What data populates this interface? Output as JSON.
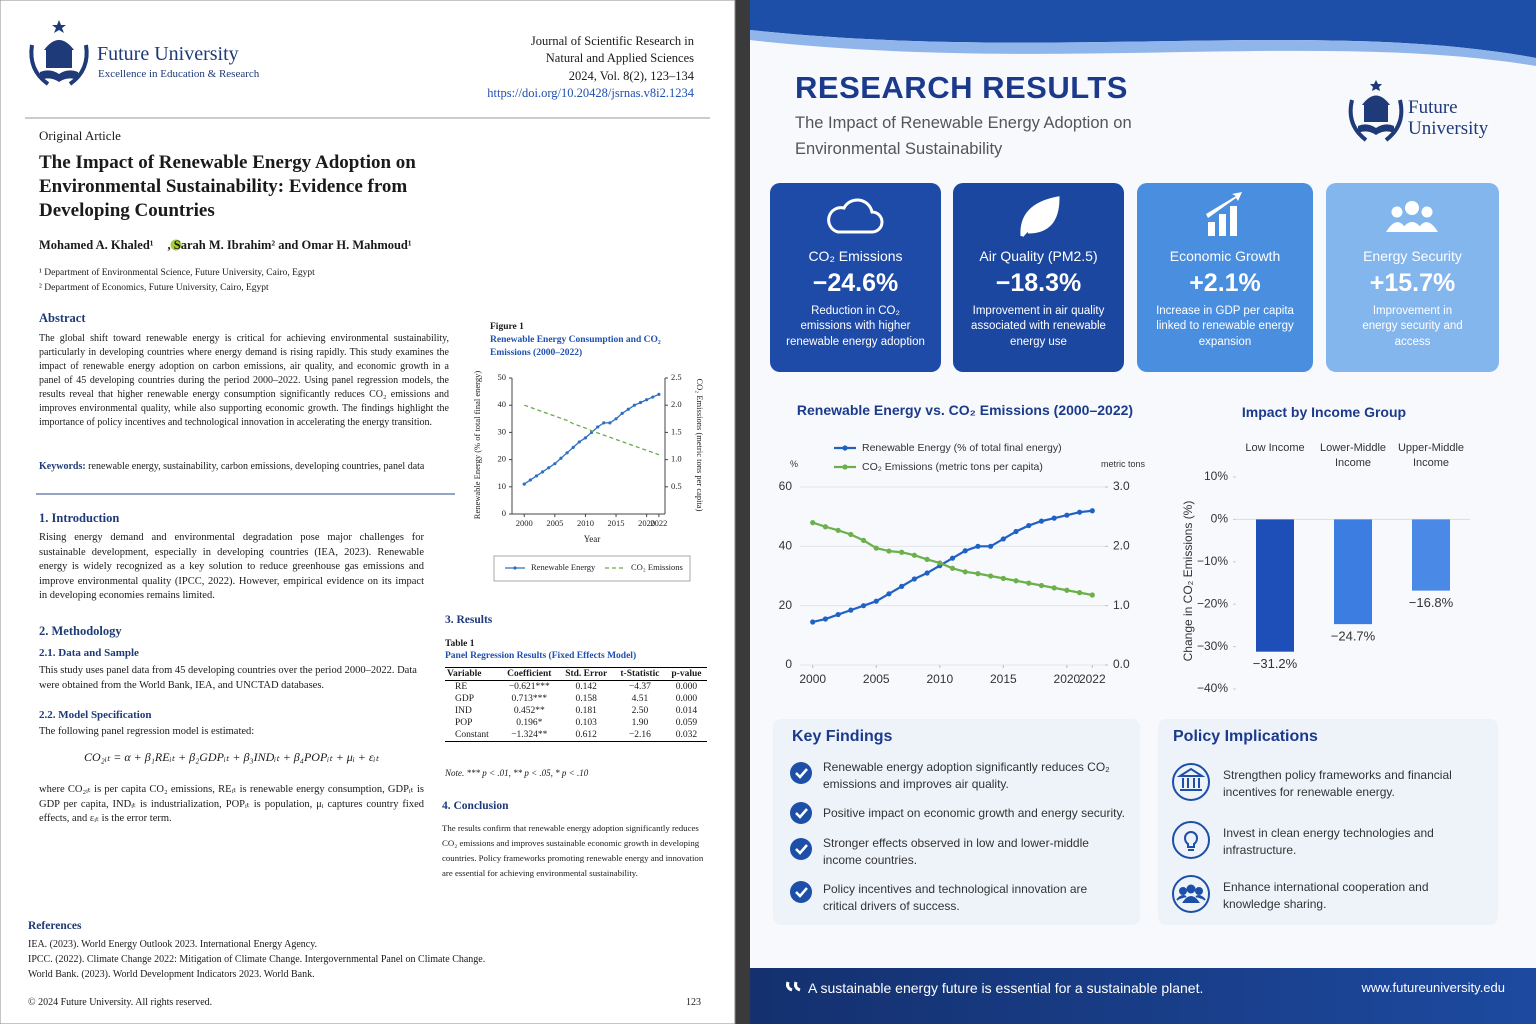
{
  "paper": {
    "logo": {
      "name": "Future University",
      "tagline": "Excellence in Education & Research"
    },
    "journal": [
      "Journal of Scientific Research in",
      "Natural and Applied Sciences",
      "2024, Vol. 8(2), 123–134",
      "https://doi.org/10.20428/jsrnas.v8i2.1234"
    ],
    "article_type": "Original Article",
    "title": "The Impact of Renewable Energy Adoption on Environmental Sustainability: Evidence from Developing Countries",
    "authors": [
      "Mohamed A. Khaled¹",
      ", Sarah M. Ibrahim² and Omar H. Mahmoud¹"
    ],
    "affiliations": [
      "¹ Department of Environmental Science, Future University, Cairo, Egypt",
      "² Department of Economics, Future University, Cairo, Egypt"
    ],
    "abstract": {
      "heading": "Abstract",
      "text": "The global shift toward renewable energy is critical for achieving environmental sustainability, particularly in developing countries where energy demand is rising rapidly. This study examines the impact of renewable energy adoption on carbon emissions, air quality, and economic growth in a panel of 45 developing countries during the period 2000–2022. Using panel regression models, the results reveal that higher renewable energy consumption significantly reduces CO₂ emissions and improves environmental quality, while also supporting economic growth. The findings highlight the importance of policy incentives and technological innovation in accelerating the energy transition."
    },
    "keywords": {
      "label": "Keywords:",
      "text": "renewable energy, sustainability, carbon emissions, developing countries, panel data"
    },
    "introduction": {
      "heading": "1. Introduction",
      "text": "Rising energy demand and environmental degradation pose major challenges for sustainable development, especially in developing countries (IEA, 2023). Renewable energy is widely recognized as a key solution to reduce greenhouse gas emissions and improve environmental quality (IPCC, 2022). However, empirical evidence on its impact in developing economies remains limited."
    },
    "methodology": {
      "heading": "2. Methodology",
      "data_heading": "2.1. Data and Sample",
      "data_text": "This study uses panel data from 45 developing countries over the period 2000–2022. Data were obtained from the World Bank, IEA, and UNCTAD databases.",
      "model_heading": "2.2. Model Specification",
      "model_text": "The following panel regression model is estimated:",
      "equation": "CO₂ᵢₜ = α + β₁REᵢₜ + β₂GDPᵢₜ + β₃INDᵢₜ + β₄POPᵢₜ + μᵢ + εᵢₜ",
      "where_text": "where CO₂ᵢₜ is per capita CO₂ emissions, REᵢₜ is renewable energy consumption, GDPᵢₜ is GDP per capita, INDᵢₜ is industrialization, POPᵢₜ is population, μᵢ captures country fixed effects, and εᵢₜ is the error term."
    },
    "results": {
      "heading": "3. Results",
      "table": {
        "label": "Table 1",
        "caption": "Panel Regression Results (Fixed Effects Model)",
        "columns": [
          "Variable",
          "Coefficient",
          "Std. Error",
          "t-Statistic",
          "p-value"
        ],
        "rows": [
          [
            "RE",
            "−0.621***",
            "0.142",
            "−4.37",
            "0.000"
          ],
          [
            "GDP",
            "0.713***",
            "0.158",
            "4.51",
            "0.000"
          ],
          [
            "IND",
            "0.452**",
            "0.181",
            "2.50",
            "0.014"
          ],
          [
            "POP",
            "0.196*",
            "0.103",
            "1.90",
            "0.059"
          ],
          [
            "Constant",
            "−1.324**",
            "0.612",
            "−2.16",
            "0.032"
          ]
        ],
        "note": "Note. *** p < .01, ** p < .05, * p < .10"
      }
    },
    "conclusion": {
      "heading": "4. Conclusion",
      "text": "The results confirm that renewable energy adoption significantly reduces CO₂ emissions and improves sustainable economic growth in developing countries. Policy frameworks promoting renewable energy and innovation are essential for achieving environmental sustainability."
    },
    "references": {
      "heading": "References",
      "items": [
        "IEA. (2023). World Energy Outlook 2023. International Energy Agency.",
        "IPCC. (2022). Climate Change 2022: Mitigation of Climate Change. Intergovernmental Panel on Climate Change.",
        "World Bank. (2023). World Development Indicators 2023. World Bank."
      ]
    },
    "footer": {
      "copyright": "© 2024 Future University. All rights reserved.",
      "page": "123"
    }
  },
  "poster": {
    "title": "RESEARCH RESULTS",
    "subtitle": "The Impact of Renewable Energy Adoption on Environmental Sustainability",
    "logo": "Future University",
    "cards": [
      {
        "title": "CO₂ Emissions",
        "value": "−24.6%",
        "text": "Reduction in CO₂ emissions with higher renewable energy adoption"
      },
      {
        "title": "Air Quality (PM2.5)",
        "value": "−18.3%",
        "text": "Improvement in air quality associated with renewable energy use"
      },
      {
        "title": "Economic Growth",
        "value": "+2.1%",
        "text": "Increase in GDP per capita linked to renewable energy expansion"
      },
      {
        "title": "Energy Security",
        "value": "+15.7%",
        "text": "Improvement in energy security and access"
      }
    ],
    "key_findings": {
      "heading": "Key Findings",
      "items": [
        "Renewable energy adoption significantly reduces CO₂ emissions and improves air quality.",
        "Positive impact on economic growth and energy security.",
        "Stronger effects observed in low and lower-middle income countries.",
        "Policy incentives and technological innovation are critical drivers of success."
      ]
    },
    "policy": {
      "heading": "Policy Implications",
      "items": [
        "Strengthen policy frameworks and financial incentives for renewable energy.",
        "Invest in clean energy technologies and infrastructure.",
        "Enhance international cooperation and knowledge sharing."
      ]
    },
    "footer": {
      "quote": "A sustainable energy future is essential for a sustainable planet.",
      "url": "www.futureuniversity.edu"
    }
  },
  "chart_data": [
    {
      "type": "line",
      "label": "Figure 1",
      "title": "Renewable Energy Consumption and CO₂ Emissions (2000–2022)",
      "xlabel": "Year",
      "ylabel": "Renewable Energy (% of total final energy)",
      "y2label": "CO₂ Emissions (metric tons per capita)",
      "x": [
        2000,
        2001,
        2002,
        2003,
        2004,
        2005,
        2006,
        2007,
        2008,
        2009,
        2010,
        2011,
        2012,
        2013,
        2014,
        2015,
        2016,
        2017,
        2018,
        2019,
        2020,
        2021,
        2022
      ],
      "xlim": [
        1998,
        2023
      ],
      "xticks": [
        2000,
        2005,
        2010,
        2015,
        2020,
        2022
      ],
      "ylim": [
        0,
        50
      ],
      "yticks": [
        0,
        10,
        20,
        30,
        40,
        50
      ],
      "y2lim": [
        0,
        2.5
      ],
      "y2ticks": [
        0.5,
        {
          "value": 1,
          "label": "1.0"
        },
        1.5,
        {
          "value": 2,
          "label": "2.0"
        },
        2.5
      ],
      "grid": false,
      "legend": "bottom",
      "series": [
        {
          "name": "Renewable Energy",
          "color": "#2e6fc0",
          "line_style": "solid",
          "values": [
            11,
            12.5,
            14,
            15.5,
            17,
            18.5,
            20.5,
            22.5,
            24.5,
            26.5,
            28,
            30,
            32,
            33.5,
            33.5,
            35,
            37,
            38.5,
            40,
            41,
            42,
            43,
            44
          ]
        },
        {
          "name": "CO₂ Emissions",
          "color": "#6aaa4a",
          "line_style": "dashed",
          "axis": "y2",
          "values": [
            2.0,
            1.96,
            1.92,
            1.88,
            1.84,
            1.8,
            1.76,
            1.72,
            1.66,
            1.62,
            1.58,
            1.53,
            1.49,
            1.45,
            1.41,
            1.37,
            1.33,
            1.29,
            1.25,
            1.21,
            1.17,
            1.13,
            1.09
          ]
        }
      ]
    },
    {
      "type": "line",
      "title": "Renewable Energy vs. CO₂ Emissions (2000–2022)",
      "ylabel": "%",
      "y2label": "metric tons",
      "x": [
        2000,
        2001,
        2002,
        2003,
        2004,
        2005,
        2006,
        2007,
        2008,
        2009,
        2010,
        2011,
        2012,
        2013,
        2014,
        2015,
        2016,
        2017,
        2018,
        2019,
        2020,
        2021,
        2022
      ],
      "xlim": [
        1999,
        2023
      ],
      "xticks": [
        2000,
        2005,
        2010,
        2015,
        2020,
        2022
      ],
      "ylim": [
        0,
        60
      ],
      "yticks": [
        0,
        20,
        40,
        60
      ],
      "y2lim": [
        0,
        3
      ],
      "y2ticks": [
        {
          "value": 0,
          "label": "0.0"
        },
        {
          "value": 1,
          "label": "1.0"
        },
        {
          "value": 2,
          "label": "2.0"
        },
        {
          "value": 3,
          "label": "3.0"
        }
      ],
      "grid": true,
      "legend": "top",
      "series": [
        {
          "name": "Renewable Energy (% of total final energy)",
          "color": "#1f62c4",
          "line_style": "solid",
          "values": [
            14.5,
            15.5,
            17,
            18.5,
            20,
            21.5,
            24,
            26.5,
            29,
            31,
            33.5,
            36,
            38.5,
            40,
            40,
            42.5,
            45,
            47,
            48.5,
            49.5,
            50.5,
            51.5,
            52
          ]
        },
        {
          "name": "CO₂ Emissions (metric tons per capita)",
          "color": "#6bb04a",
          "line_style": "solid",
          "axis": "y2",
          "values": [
            2.4,
            2.33,
            2.27,
            2.2,
            2.1,
            1.97,
            1.92,
            1.9,
            1.85,
            1.78,
            1.72,
            1.63,
            1.57,
            1.54,
            1.5,
            1.46,
            1.42,
            1.38,
            1.34,
            1.3,
            1.26,
            1.22,
            1.18
          ]
        }
      ]
    },
    {
      "type": "bar",
      "title": "Impact by Income Group",
      "ylabel": "Change in CO₂ Emissions (%)",
      "categories": [
        "Low Income",
        "Lower-Middle Income",
        "Upper-Middle Income"
      ],
      "values": [
        -31.2,
        -24.7,
        -16.8
      ],
      "value_labels": [
        "−31.2%",
        "−24.7%",
        "−16.8%"
      ],
      "colors": [
        "#1e4fb8",
        "#3b7de0",
        "#4a8ae6"
      ],
      "ylim": [
        -40,
        10
      ],
      "yticks": [
        {
          "value": 10,
          "label": "10%"
        },
        {
          "value": 0,
          "label": "0%"
        },
        {
          "value": -10,
          "label": "−10%"
        },
        {
          "value": -20,
          "label": "−20%"
        },
        {
          "value": -30,
          "label": "−30%"
        },
        {
          "value": -40,
          "label": "−40%"
        }
      ],
      "grid": false
    }
  ]
}
